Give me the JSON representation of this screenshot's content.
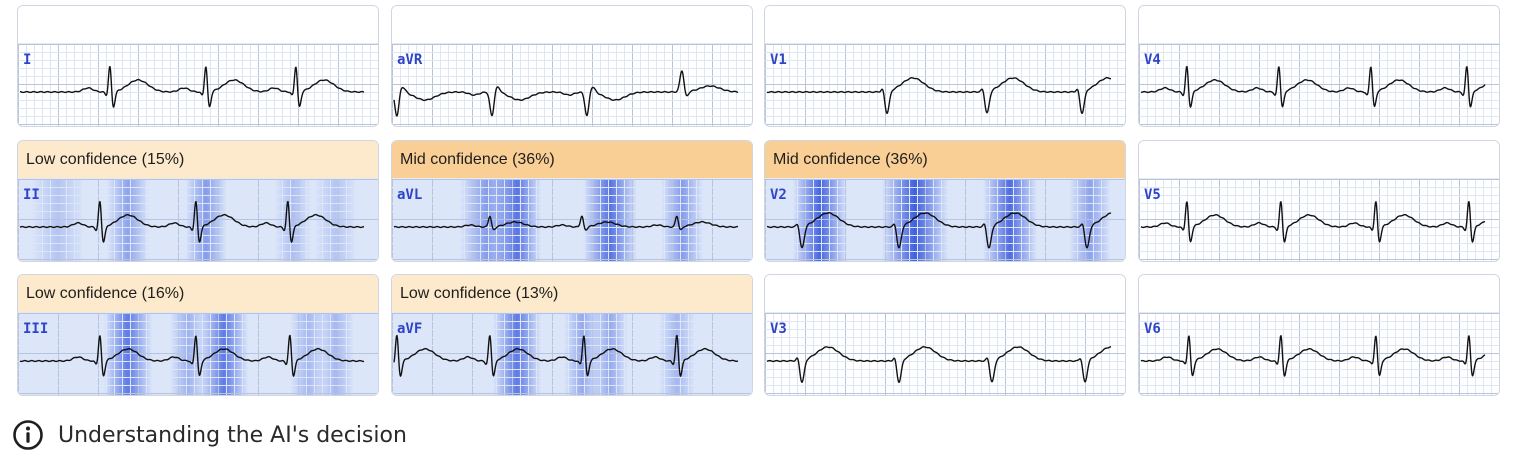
{
  "panels": [
    {
      "lead": "I",
      "header": "",
      "level": "none",
      "pattern": [
        [
          92,
          "R"
        ],
        [
          188,
          "R"
        ],
        [
          278,
          "R"
        ]
      ],
      "heat": []
    },
    {
      "lead": "aVR",
      "header": "",
      "level": "none",
      "pattern": [
        [
          5,
          "N"
        ],
        [
          100,
          "N"
        ],
        [
          195,
          "N"
        ],
        [
          290,
          "U"
        ]
      ],
      "heat": []
    },
    {
      "lead": "V1",
      "header": "",
      "level": "none",
      "pattern": [
        [
          120,
          "S"
        ],
        [
          220,
          "S"
        ],
        [
          315,
          "S"
        ]
      ],
      "heat": []
    },
    {
      "lead": "V4",
      "header": "",
      "level": "none",
      "pattern": [
        [
          48,
          "R"
        ],
        [
          140,
          "R"
        ],
        [
          232,
          "R"
        ],
        [
          328,
          "R"
        ]
      ],
      "heat": []
    },
    {
      "lead": "II",
      "header": "Low confidence (15%)",
      "level": "low",
      "pattern": [
        [
          82,
          "R"
        ],
        [
          178,
          "R"
        ],
        [
          270,
          "R"
        ]
      ],
      "heat": [
        [
          40,
          18,
          0.25
        ],
        [
          110,
          14,
          0.5
        ],
        [
          188,
          14,
          0.55
        ],
        [
          275,
          12,
          0.3
        ],
        [
          318,
          14,
          0.25
        ]
      ]
    },
    {
      "lead": "aVL",
      "header": "Mid confidence (36%)",
      "level": "mid",
      "pattern": [
        [
          98,
          "r"
        ],
        [
          190,
          "r"
        ],
        [
          285,
          "r"
        ]
      ],
      "heat": [
        [
          95,
          18,
          0.55
        ],
        [
          125,
          16,
          0.85
        ],
        [
          218,
          18,
          0.85
        ],
        [
          290,
          14,
          0.55
        ]
      ]
    },
    {
      "lead": "V2",
      "header": "Mid confidence (36%)",
      "level": "mid",
      "pattern": [
        [
          35,
          "S"
        ],
        [
          132,
          "S"
        ],
        [
          222,
          "S"
        ],
        [
          320,
          "S"
        ]
      ],
      "heat": [
        [
          55,
          18,
          0.95
        ],
        [
          150,
          22,
          1.0
        ],
        [
          245,
          18,
          0.9
        ],
        [
          325,
          14,
          0.5
        ]
      ]
    },
    {
      "lead": "V5",
      "header": "",
      "level": "none",
      "pattern": [
        [
          48,
          "R"
        ],
        [
          142,
          "R"
        ],
        [
          237,
          "R"
        ],
        [
          330,
          "R"
        ]
      ],
      "heat": []
    },
    {
      "lead": "III",
      "header": "Low confidence (16%)",
      "level": "low",
      "pattern": [
        [
          82,
          "R"
        ],
        [
          178,
          "R"
        ],
        [
          272,
          "R"
        ]
      ],
      "heat": [
        [
          110,
          16,
          0.8
        ],
        [
          170,
          12,
          0.4
        ],
        [
          206,
          16,
          0.8
        ],
        [
          290,
          12,
          0.35
        ],
        [
          318,
          12,
          0.35
        ]
      ]
    },
    {
      "lead": "aVF",
      "header": "Low confidence (13%)",
      "level": "low",
      "pattern": [
        [
          5,
          "R"
        ],
        [
          98,
          "R"
        ],
        [
          192,
          "R"
        ],
        [
          285,
          "R"
        ]
      ],
      "heat": [
        [
          125,
          16,
          0.8
        ],
        [
          190,
          12,
          0.45
        ],
        [
          218,
          12,
          0.45
        ],
        [
          285,
          12,
          0.35
        ]
      ]
    },
    {
      "lead": "V3",
      "header": "",
      "level": "none",
      "pattern": [
        [
          35,
          "S"
        ],
        [
          132,
          "S"
        ],
        [
          225,
          "S"
        ],
        [
          318,
          "S"
        ]
      ],
      "heat": []
    },
    {
      "lead": "V6",
      "header": "",
      "level": "none",
      "pattern": [
        [
          50,
          "R"
        ],
        [
          142,
          "R"
        ],
        [
          237,
          "R"
        ],
        [
          330,
          "R"
        ]
      ],
      "heat": []
    }
  ],
  "footer": {
    "icon": "info-icon",
    "label": "Understanding the AI's decision"
  },
  "colors": {
    "grid_minor": "#dfe6f3",
    "grid_major": "#b7c4dc",
    "trace": "#111111",
    "heat": "#3f5fe0",
    "lead_label": "#2f45c8"
  }
}
